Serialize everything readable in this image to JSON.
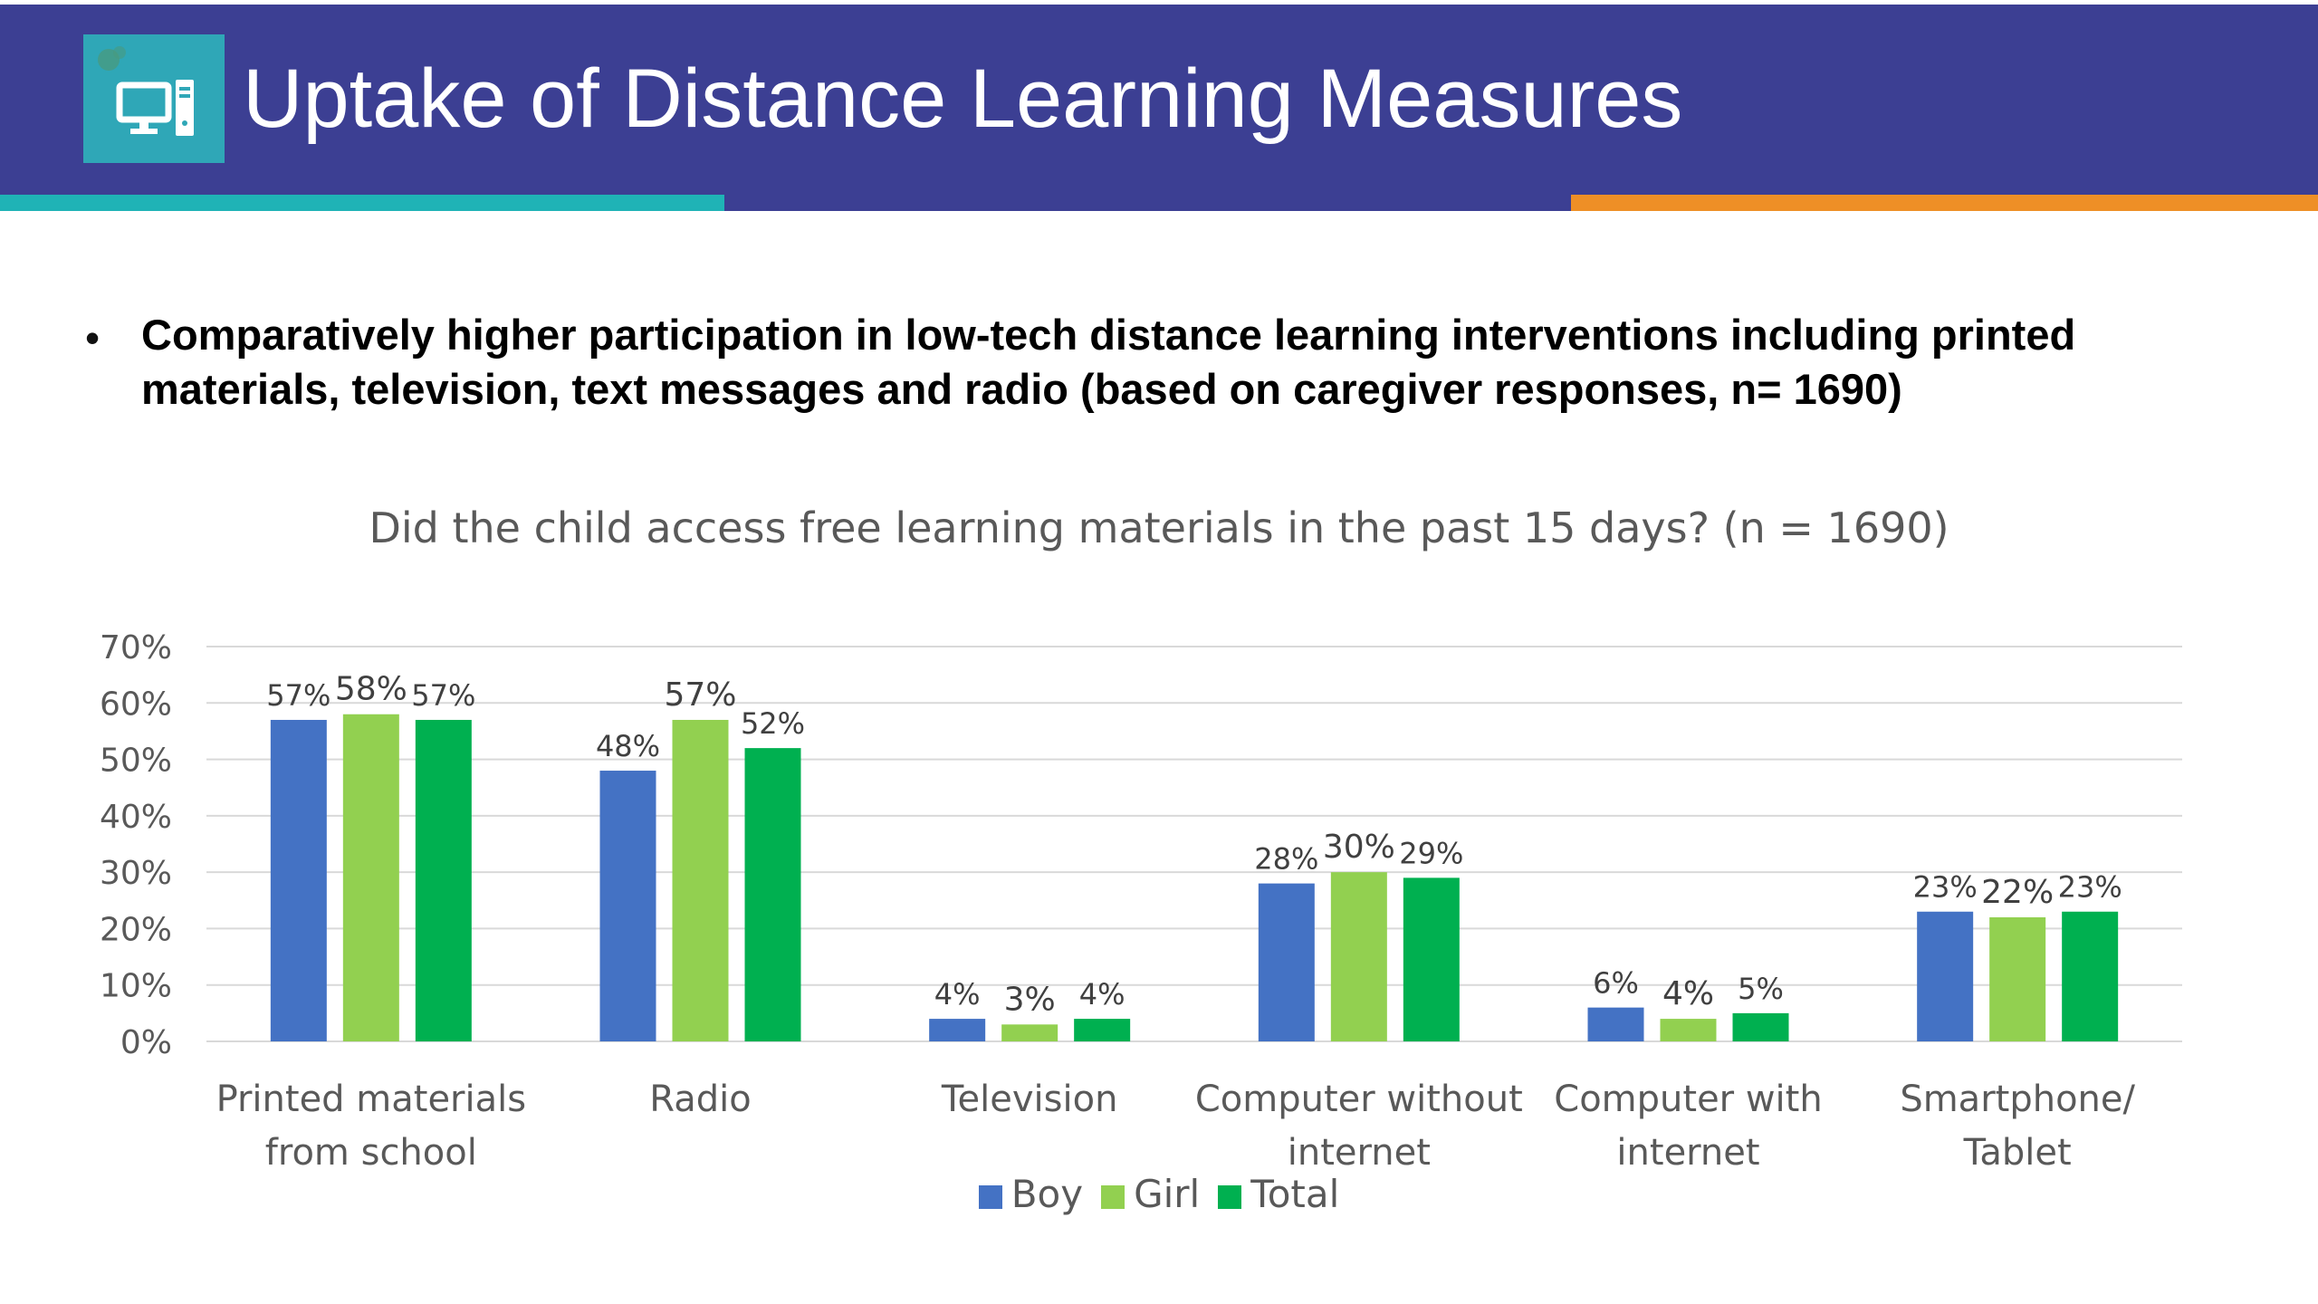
{
  "header": {
    "title": "Uptake of Distance Learning Measures",
    "icon": "computer-icon",
    "colors": {
      "band": "#3C3F93",
      "accent_left": "#1FB3B6",
      "accent_right": "#EE8F26",
      "logo_bg": "#2FA7B7"
    }
  },
  "bullet": {
    "symbol": "•",
    "text": "Comparatively higher participation in low-tech distance learning interventions including printed materials, television, text messages and radio (based on caregiver responses, n= 1690)"
  },
  "chart_data": {
    "type": "bar",
    "title": "Did the child access free learning materials in the past 15 days? (n = 1690)",
    "xlabel": "",
    "ylabel": "",
    "ylim": [
      0,
      70
    ],
    "yticks": [
      "0%",
      "10%",
      "20%",
      "30%",
      "40%",
      "50%",
      "60%",
      "70%"
    ],
    "grid": true,
    "legend_position": "bottom",
    "categories": [
      [
        "Printed materials",
        "from school"
      ],
      [
        "Radio"
      ],
      [
        "Television"
      ],
      [
        "Computer without",
        "internet"
      ],
      [
        "Computer with",
        "internet"
      ],
      [
        "Smartphone/",
        "Tablet"
      ]
    ],
    "series": [
      {
        "name": "Boy",
        "color": "#4472C4",
        "values": [
          57,
          48,
          4,
          28,
          6,
          23
        ],
        "labels": [
          "57%",
          "48%",
          "4%",
          "28%",
          "6%",
          "23%"
        ]
      },
      {
        "name": "Girl",
        "color": "#92D050",
        "values": [
          58,
          57,
          3,
          30,
          4,
          22
        ],
        "labels": [
          "58%",
          "57%",
          "3%",
          "30%",
          "4%",
          "22%"
        ]
      },
      {
        "name": "Total",
        "color": "#00B050",
        "values": [
          57,
          52,
          4,
          29,
          5,
          23
        ],
        "labels": [
          "57%",
          "52%",
          "4%",
          "29%",
          "5%",
          "23%"
        ]
      }
    ]
  }
}
